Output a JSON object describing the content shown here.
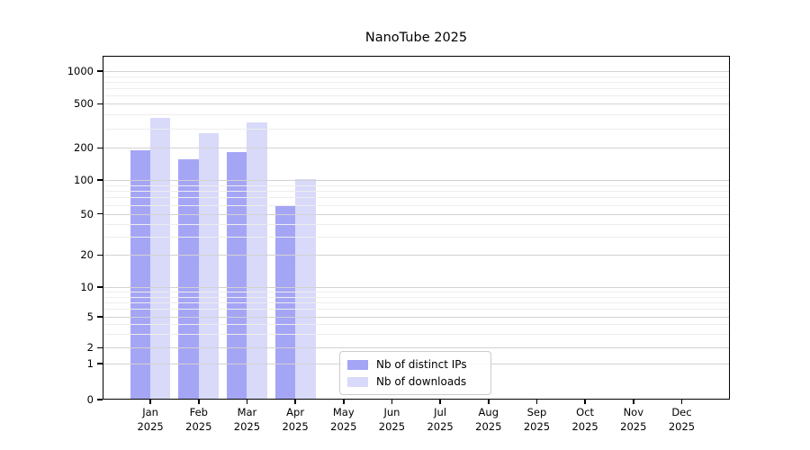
{
  "chart_data": {
    "type": "bar",
    "title": "NanoTube 2025",
    "categories": [
      "Jan 2025",
      "Feb 2025",
      "Mar 2025",
      "Apr 2025",
      "May 2025",
      "Jun 2025",
      "Jul 2025",
      "Aug 2025",
      "Sep 2025",
      "Oct 2025",
      "Nov 2025",
      "Dec 2025"
    ],
    "series": [
      {
        "name": "Nb of distinct IPs",
        "color": "#a5a5f6",
        "values": [
          188,
          155,
          184,
          59,
          0,
          0,
          0,
          0,
          0,
          0,
          0,
          0
        ]
      },
      {
        "name": "Nb of downloads",
        "color": "#d9d9fa",
        "values": [
          370,
          272,
          338,
          102,
          0,
          0,
          0,
          0,
          0,
          0,
          0,
          0
        ]
      }
    ],
    "xlabel": "",
    "ylabel": "",
    "y_ticks": [
      0,
      1,
      2,
      5,
      10,
      20,
      50,
      100,
      200,
      500,
      1000
    ],
    "y_minor_gridlines": [
      3,
      4,
      6,
      7,
      8,
      9,
      30,
      40,
      60,
      70,
      80,
      90,
      300,
      400,
      600,
      700,
      800,
      900
    ],
    "y_scale": "symlog",
    "ylim": [
      0,
      1400
    ],
    "grid": true,
    "legend_position": "lower center"
  }
}
